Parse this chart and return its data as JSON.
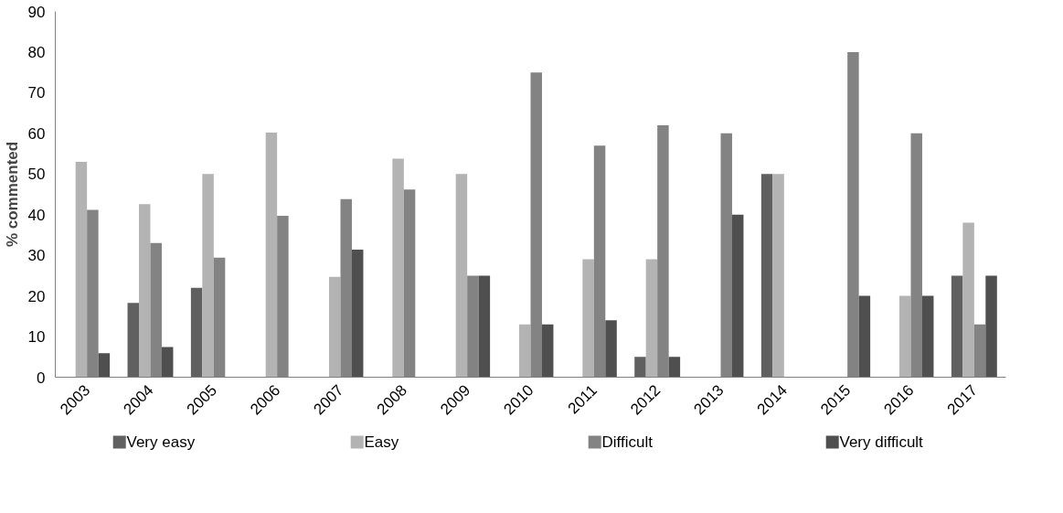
{
  "chart_data": {
    "type": "bar",
    "ylabel": "% commented",
    "categories": [
      "2003",
      "2004",
      "2005",
      "2006",
      "2007",
      "2008",
      "2009",
      "2010",
      "2011",
      "2012",
      "2013",
      "2014",
      "2015",
      "2016",
      "2017"
    ],
    "series": [
      {
        "name": "Very easy",
        "color": "#606060",
        "values": [
          0,
          18.3,
          22,
          0,
          0,
          0,
          0,
          0,
          0,
          5,
          0,
          50,
          0,
          0,
          25
        ]
      },
      {
        "name": "Easy",
        "color": "#b3b3b3",
        "values": [
          53,
          42.6,
          50,
          60.2,
          24.7,
          53.8,
          50,
          13,
          29,
          29,
          0,
          50,
          0,
          20,
          38
        ]
      },
      {
        "name": "Difficult",
        "color": "#838383",
        "values": [
          41.2,
          33,
          29.4,
          39.7,
          43.8,
          46.2,
          25,
          75,
          57,
          62,
          60,
          0,
          80,
          60,
          13
        ]
      },
      {
        "name": "Very difficult",
        "color": "#4f4f4f",
        "values": [
          5.9,
          7.4,
          0,
          0,
          31.4,
          0,
          25,
          13,
          14,
          5,
          40,
          0,
          20,
          20,
          25
        ]
      }
    ],
    "ylim": [
      0,
      90
    ],
    "yticks": [
      0,
      10,
      20,
      30,
      40,
      50,
      60,
      70,
      80,
      90
    ],
    "grid": false,
    "legend": "bottom"
  }
}
